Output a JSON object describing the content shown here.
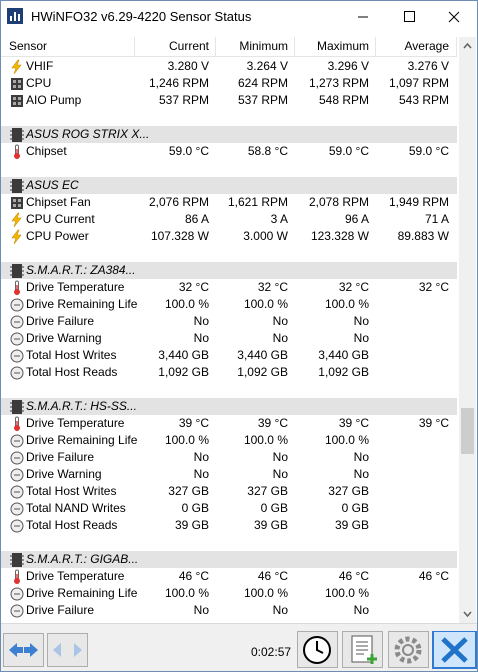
{
  "header": {
    "title": "HWiNFO32 v6.29-4220 Sensor Status"
  },
  "columns": [
    "Sensor",
    "Current",
    "Minimum",
    "Maximum",
    "Average"
  ],
  "sections": [
    {
      "rows": [
        {
          "label": "VHIF",
          "current": "3.280 V",
          "minimum": "3.264 V",
          "maximum": "3.296 V",
          "average": "3.276 V"
        },
        {
          "label": "CPU",
          "current": "1,246 RPM",
          "minimum": "624 RPM",
          "maximum": "1,273 RPM",
          "average": "1,097 RPM"
        },
        {
          "label": "AIO Pump",
          "current": "537 RPM",
          "minimum": "537 RPM",
          "maximum": "548 RPM",
          "average": "543 RPM"
        }
      ]
    },
    {
      "name": "ASUS ROG STRIX X...",
      "rows": [
        {
          "label": "Chipset",
          "current": "59.0 °C",
          "minimum": "58.8 °C",
          "maximum": "59.0 °C",
          "average": "59.0 °C"
        }
      ]
    },
    {
      "name": "ASUS EC",
      "rows": [
        {
          "label": "Chipset Fan",
          "current": "2,076 RPM",
          "minimum": "1,621 RPM",
          "maximum": "2,078 RPM",
          "average": "1,949 RPM"
        },
        {
          "label": "CPU Current",
          "current": "86 A",
          "minimum": "3 A",
          "maximum": "96 A",
          "average": "71 A"
        },
        {
          "label": "CPU Power",
          "current": "107.328 W",
          "minimum": "3.000 W",
          "maximum": "123.328 W",
          "average": "89.883 W"
        }
      ]
    },
    {
      "name": "S.M.A.R.T.: ZA384...",
      "rows": [
        {
          "label": "Drive Temperature",
          "current": "32 °C",
          "minimum": "32 °C",
          "maximum": "32 °C",
          "average": "32 °C"
        },
        {
          "label": "Drive Remaining Life",
          "current": "100.0 %",
          "minimum": "100.0 %",
          "maximum": "100.0 %"
        },
        {
          "label": "Drive Failure",
          "current": "No",
          "minimum": "No",
          "maximum": "No"
        },
        {
          "label": "Drive Warning",
          "current": "No",
          "minimum": "No",
          "maximum": "No"
        },
        {
          "label": "Total Host Writes",
          "current": "3,440 GB",
          "minimum": "3,440 GB",
          "maximum": "3,440 GB"
        },
        {
          "label": "Total Host Reads",
          "current": "1,092 GB",
          "minimum": "1,092 GB",
          "maximum": "1,092 GB"
        }
      ]
    },
    {
      "name": "S.M.A.R.T.: HS-SS...",
      "rows": [
        {
          "label": "Drive Temperature",
          "current": "39 °C",
          "minimum": "39 °C",
          "maximum": "39 °C",
          "average": "39 °C"
        },
        {
          "label": "Drive Remaining Life",
          "current": "100.0 %",
          "minimum": "100.0 %",
          "maximum": "100.0 %"
        },
        {
          "label": "Drive Failure",
          "current": "No",
          "minimum": "No",
          "maximum": "No"
        },
        {
          "label": "Drive Warning",
          "current": "No",
          "minimum": "No",
          "maximum": "No"
        },
        {
          "label": "Total Host Writes",
          "current": "327 GB",
          "minimum": "327 GB",
          "maximum": "327 GB"
        },
        {
          "label": "Total NAND Writes",
          "current": "0 GB",
          "minimum": "0 GB",
          "maximum": "0 GB"
        },
        {
          "label": "Total Host Reads",
          "current": "39 GB",
          "minimum": "39 GB",
          "maximum": "39 GB"
        }
      ]
    },
    {
      "name": "S.M.A.R.T.: GIGAB...",
      "rows": [
        {
          "label": "Drive Temperature",
          "current": "46 °C",
          "minimum": "46 °C",
          "maximum": "46 °C",
          "average": "46 °C"
        },
        {
          "label": "Drive Remaining Life",
          "current": "100.0 %",
          "minimum": "100.0 %",
          "maximum": "100.0 %"
        },
        {
          "label": "Drive Failure",
          "current": "No",
          "minimum": "No",
          "maximum": "No"
        }
      ]
    }
  ],
  "footer": {
    "timer": "0:02:57"
  }
}
